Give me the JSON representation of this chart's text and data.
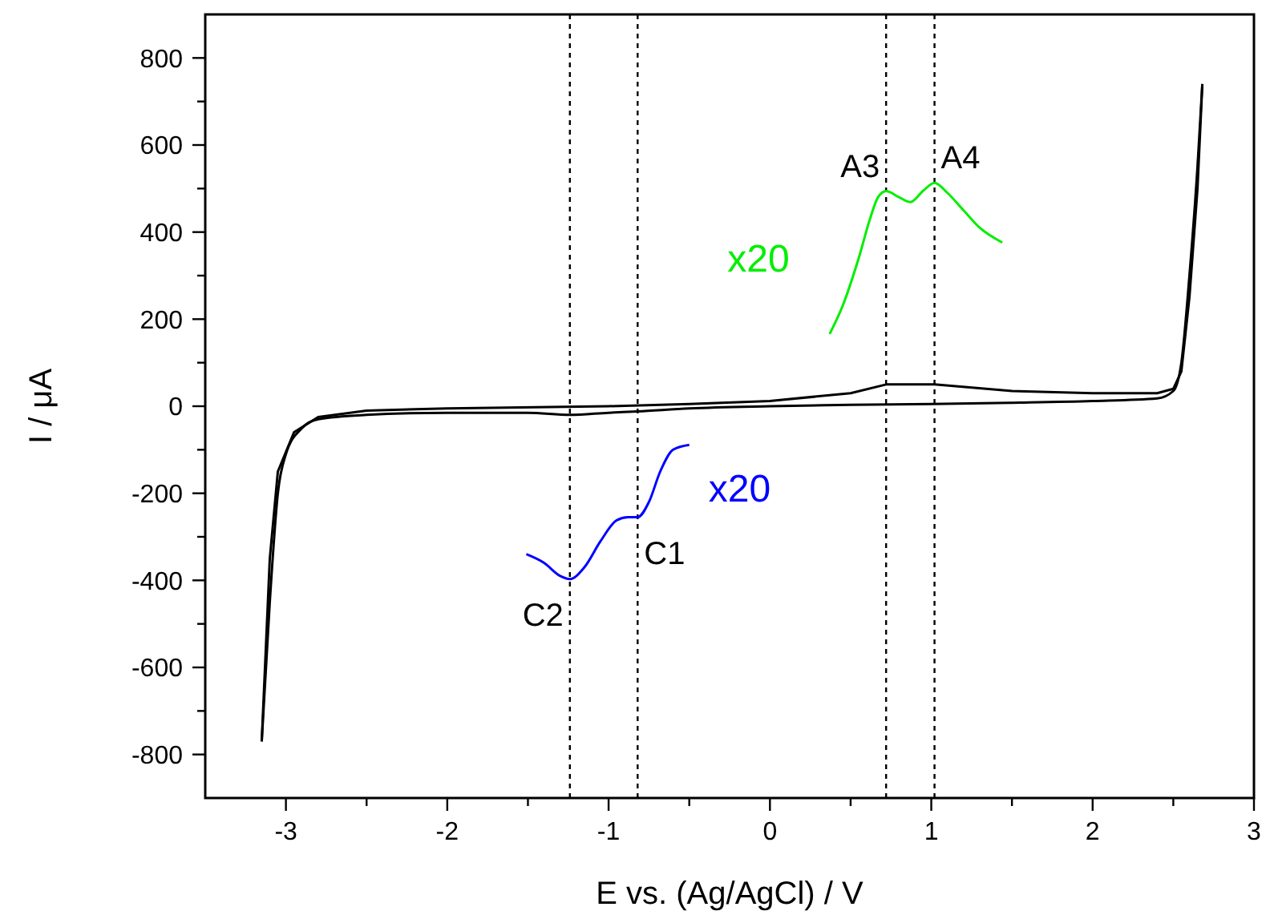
{
  "chart_data": {
    "type": "line",
    "xlabel": "E vs. (Ag/AgCl) / V",
    "ylabel": "I / μA",
    "xlim": [
      -3.5,
      3
    ],
    "ylim": [
      -900,
      900
    ],
    "xticks": [
      -3,
      {
        "value": -2.5,
        "label": null
      },
      -2,
      {
        "value": -1.5,
        "label": null
      },
      -1,
      {
        "value": -0.5,
        "label": null
      },
      0,
      {
        "value": 0.5,
        "label": null
      },
      1,
      {
        "value": 1.5,
        "label": null
      },
      2,
      {
        "value": 2.5,
        "label": null
      },
      3
    ],
    "yticks": [
      -800,
      {
        "value": -700,
        "label": null
      },
      -600,
      {
        "value": -500,
        "label": null
      },
      -400,
      {
        "value": -300,
        "label": null
      },
      -200,
      {
        "value": -100,
        "label": null
      },
      0,
      {
        "value": 100,
        "label": null
      },
      200,
      {
        "value": 300,
        "label": null
      },
      400,
      {
        "value": 500,
        "label": null
      },
      600,
      {
        "value": 700,
        "label": null
      },
      800
    ],
    "grid": false,
    "marker": "none",
    "series": [
      {
        "color": "#000000",
        "x": [
          -3.15,
          -3.1,
          -3.05,
          -3.0,
          -2.9,
          -2.8,
          -2.5,
          -2.0,
          -1.5,
          -1.24,
          -1.0,
          -0.82,
          -0.5,
          0,
          0.5,
          1.0,
          1.5,
          2.0,
          2.4,
          2.5,
          2.55,
          2.6,
          2.65,
          2.68
        ],
        "values": [
          -770,
          -450,
          -200,
          -110,
          -50,
          -30,
          -20,
          -15,
          -15,
          -20,
          -15,
          -12,
          -5,
          0,
          3,
          5,
          8,
          12,
          18,
          35,
          100,
          300,
          550,
          740
        ]
      },
      {
        "color": "#000000",
        "x": [
          2.68,
          2.65,
          2.6,
          2.55,
          2.5,
          2.4,
          2.0,
          1.5,
          1.02,
          0.72,
          0.5,
          0,
          -0.5,
          -1.0,
          -2.0,
          -2.5,
          -2.8,
          -2.95,
          -3.05,
          -3.1,
          -3.15
        ],
        "values": [
          740,
          500,
          250,
          80,
          40,
          30,
          30,
          35,
          50,
          50,
          30,
          12,
          5,
          0,
          -5,
          -10,
          -25,
          -60,
          -150,
          -350,
          -770
        ]
      },
      {
        "name": "x20",
        "color": "#00ee00",
        "x": [
          0.37,
          0.45,
          0.55,
          0.62,
          0.67,
          0.72,
          0.8,
          0.87,
          0.95,
          1.02,
          1.1,
          1.2,
          1.3,
          1.44
        ],
        "values": [
          166,
          230,
          340,
          430,
          480,
          494,
          480,
          469,
          495,
          513,
          490,
          450,
          410,
          376
        ]
      },
      {
        "name": "x20",
        "color": "#0000ff",
        "x": [
          -1.51,
          -1.4,
          -1.3,
          -1.24,
          -1.15,
          -1.05,
          -0.95,
          -0.88,
          -0.82,
          -0.75,
          -0.68,
          -0.6,
          -0.5
        ],
        "values": [
          -340,
          -360,
          -390,
          -397,
          -370,
          -310,
          -262,
          -255,
          -255,
          -220,
          -150,
          -100,
          -89
        ]
      }
    ],
    "ref_lines": [
      {
        "axis": "x",
        "value": -1.24,
        "color": "#000000",
        "line_style": "dashed"
      },
      {
        "axis": "x",
        "value": -0.82,
        "color": "#000000",
        "line_style": "dashed"
      },
      {
        "axis": "x",
        "value": 0.72,
        "color": "#000000",
        "line_style": "dashed"
      },
      {
        "axis": "x",
        "value": 1.02,
        "color": "#000000",
        "line_style": "dashed"
      }
    ],
    "annotations": [
      {
        "text": "A3",
        "x": 0.72,
        "y": 494
      },
      {
        "text": "A4",
        "x": 1.02,
        "y": 513
      },
      {
        "text": "C1",
        "x": -0.82,
        "y": -255
      },
      {
        "text": "C2",
        "x": -1.24,
        "y": -397
      }
    ]
  }
}
